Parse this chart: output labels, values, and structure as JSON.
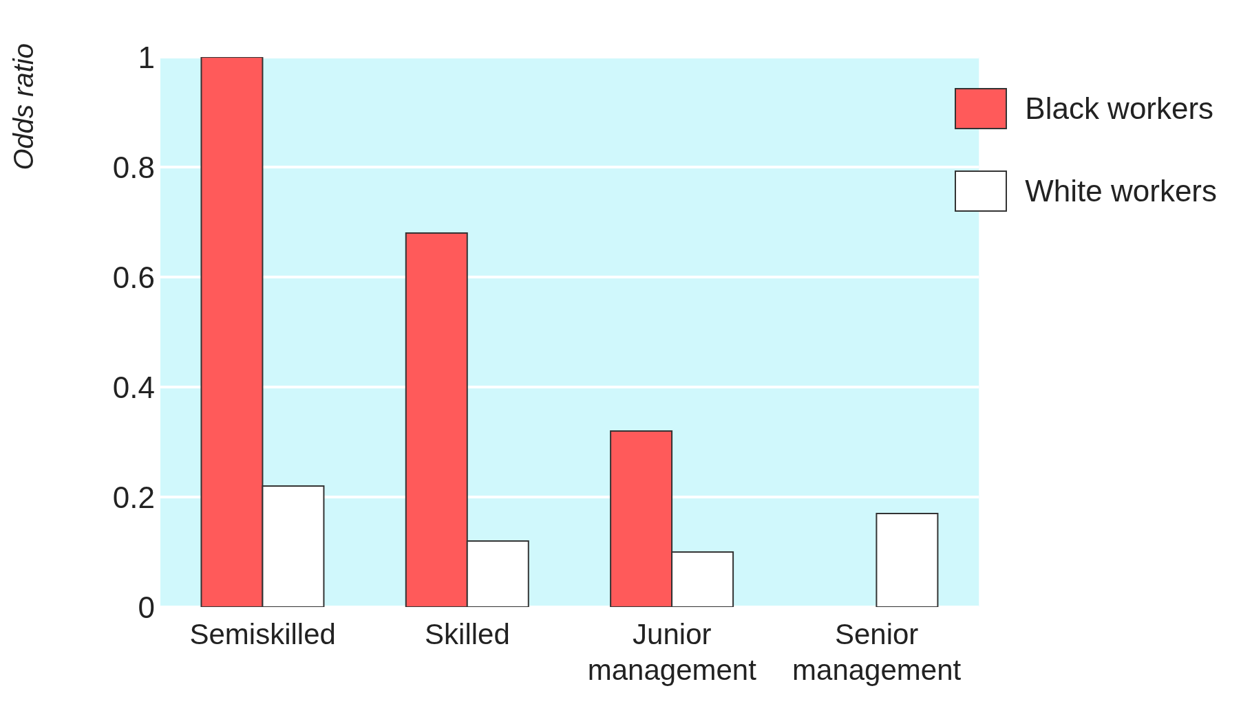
{
  "chart_data": {
    "type": "bar",
    "ylabel": "Odds ratio",
    "categories": [
      "Semiskilled",
      "Skilled",
      "Junior\nmanagement",
      "Senior\nmanagement"
    ],
    "series": [
      {
        "name": "Black workers",
        "color": "#ff5a5a",
        "values": [
          1,
          0.68,
          0.32,
          null
        ]
      },
      {
        "name": "White workers",
        "color": "#ffffff",
        "values": [
          0.22,
          0.12,
          0.1,
          0.17
        ]
      }
    ],
    "ylim": [
      0,
      1
    ],
    "yticks": [
      0,
      0.2,
      0.4,
      0.6,
      0.8,
      1
    ],
    "grid": "y",
    "legend": "top right"
  }
}
